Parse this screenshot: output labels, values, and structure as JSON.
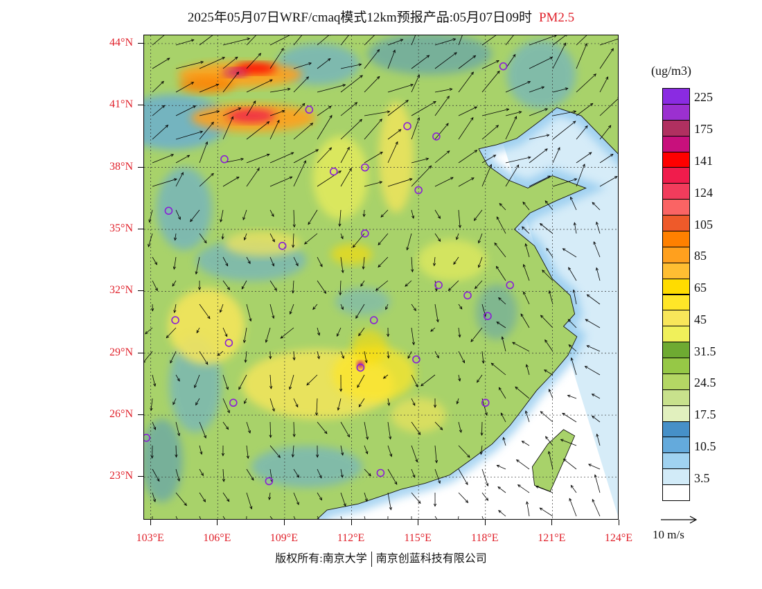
{
  "header": {
    "title": "2025年05月07日WRF/cmaq模式12km预报产品:05月07日09时",
    "variable": "PM2.5"
  },
  "map": {
    "lat_labels": [
      "44°N",
      "41°N",
      "38°N",
      "35°N",
      "32°N",
      "29°N",
      "26°N",
      "23°N"
    ],
    "lat_values": [
      44,
      41,
      38,
      35,
      32,
      29,
      26,
      23
    ],
    "lon_labels": [
      "103°E",
      "106°E",
      "109°E",
      "112°E",
      "115°E",
      "118°E",
      "121°E",
      "124°E"
    ],
    "lon_values": [
      103,
      106,
      109,
      112,
      115,
      118,
      121,
      124
    ],
    "lat_range": [
      20.9,
      44.4
    ],
    "lon_range": [
      102.7,
      124
    ],
    "city_marker_color": "#8a1fd6",
    "land_base_color": "#a8d26a",
    "sea_color": "#ffffff"
  },
  "colorbar": {
    "units": "(ug/m3)",
    "levels": [
      {
        "color": "#8a2be2",
        "label": "225"
      },
      {
        "color": "#9b30d0",
        "label": ""
      },
      {
        "color": "#b03060",
        "label": "175"
      },
      {
        "color": "#c8107c",
        "label": ""
      },
      {
        "color": "#ff0000",
        "label": "141"
      },
      {
        "color": "#f01c4c",
        "label": ""
      },
      {
        "color": "#f23c5c",
        "label": "124"
      },
      {
        "color": "#fa6464",
        "label": ""
      },
      {
        "color": "#ee5a2a",
        "label": "105"
      },
      {
        "color": "#ff8000",
        "label": ""
      },
      {
        "color": "#ffa01e",
        "label": "85"
      },
      {
        "color": "#ffbe32",
        "label": ""
      },
      {
        "color": "#ffdc00",
        "label": "65"
      },
      {
        "color": "#ffe628",
        "label": ""
      },
      {
        "color": "#f8e65a",
        "label": "45"
      },
      {
        "color": "#f0f05a",
        "label": ""
      },
      {
        "color": "#6eaa32",
        "label": "31.5"
      },
      {
        "color": "#96c846",
        "label": ""
      },
      {
        "color": "#b4d764",
        "label": "24.5"
      },
      {
        "color": "#c8e18c",
        "label": ""
      },
      {
        "color": "#e1f0be",
        "label": "17.5"
      },
      {
        "color": "#4690c8",
        "label": ""
      },
      {
        "color": "#64aadc",
        "label": "10.5"
      },
      {
        "color": "#a0d2f0",
        "label": ""
      },
      {
        "color": "#d2ebf8",
        "label": "3.5"
      },
      {
        "color": "#ffffff",
        "label": ""
      }
    ]
  },
  "vector_reference": {
    "label": "10 m/s"
  },
  "footer": {
    "copyright_left": "版权所有:南京大学",
    "copyright_right": "南京创蓝科技有限公司"
  }
}
